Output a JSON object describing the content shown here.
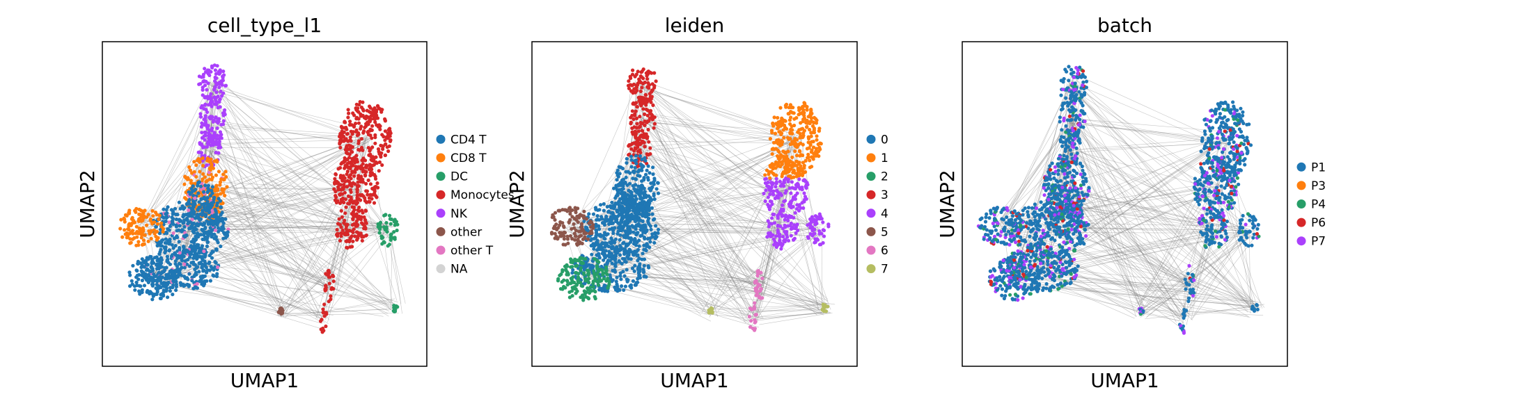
{
  "chart_data": [
    {
      "type": "scatter",
      "title": "cell_type_l1",
      "xlabel": "UMAP1",
      "ylabel": "UMAP2",
      "xlim": [
        0,
        100
      ],
      "ylim": [
        0,
        100
      ],
      "grid": false,
      "legend_position": "right",
      "edges_color": "#808080",
      "series": [
        {
          "name": "CD4 T",
          "color": "#1f77b4"
        },
        {
          "name": "CD8 T",
          "color": "#ff7f0e"
        },
        {
          "name": "DC",
          "color": "#279e68"
        },
        {
          "name": "Monocytes",
          "color": "#d62728"
        },
        {
          "name": "NK",
          "color": "#aa40fc"
        },
        {
          "name": "other",
          "color": "#8c564b"
        },
        {
          "name": "other T",
          "color": "#e377c2"
        },
        {
          "name": "NA",
          "color": "#d3d3d3"
        }
      ]
    },
    {
      "type": "scatter",
      "title": "leiden",
      "xlabel": "UMAP1",
      "ylabel": "UMAP2",
      "xlim": [
        0,
        100
      ],
      "ylim": [
        0,
        100
      ],
      "grid": false,
      "legend_position": "right",
      "edges_color": "#808080",
      "series": [
        {
          "name": "0",
          "color": "#1f77b4"
        },
        {
          "name": "1",
          "color": "#ff7f0e"
        },
        {
          "name": "2",
          "color": "#279e68"
        },
        {
          "name": "3",
          "color": "#d62728"
        },
        {
          "name": "4",
          "color": "#aa40fc"
        },
        {
          "name": "5",
          "color": "#8c564b"
        },
        {
          "name": "6",
          "color": "#e377c2"
        },
        {
          "name": "7",
          "color": "#b5bd61"
        }
      ]
    },
    {
      "type": "scatter",
      "title": "batch",
      "xlabel": "UMAP1",
      "ylabel": "UMAP2",
      "xlim": [
        0,
        100
      ],
      "ylim": [
        0,
        100
      ],
      "grid": false,
      "legend_position": "right",
      "edges_color": "#808080",
      "series": [
        {
          "name": "P1",
          "color": "#1f77b4"
        },
        {
          "name": "P3",
          "color": "#ff7f0e"
        },
        {
          "name": "P4",
          "color": "#279e68"
        },
        {
          "name": "P6",
          "color": "#d62728"
        },
        {
          "name": "P7",
          "color": "#aa40fc"
        }
      ]
    }
  ]
}
